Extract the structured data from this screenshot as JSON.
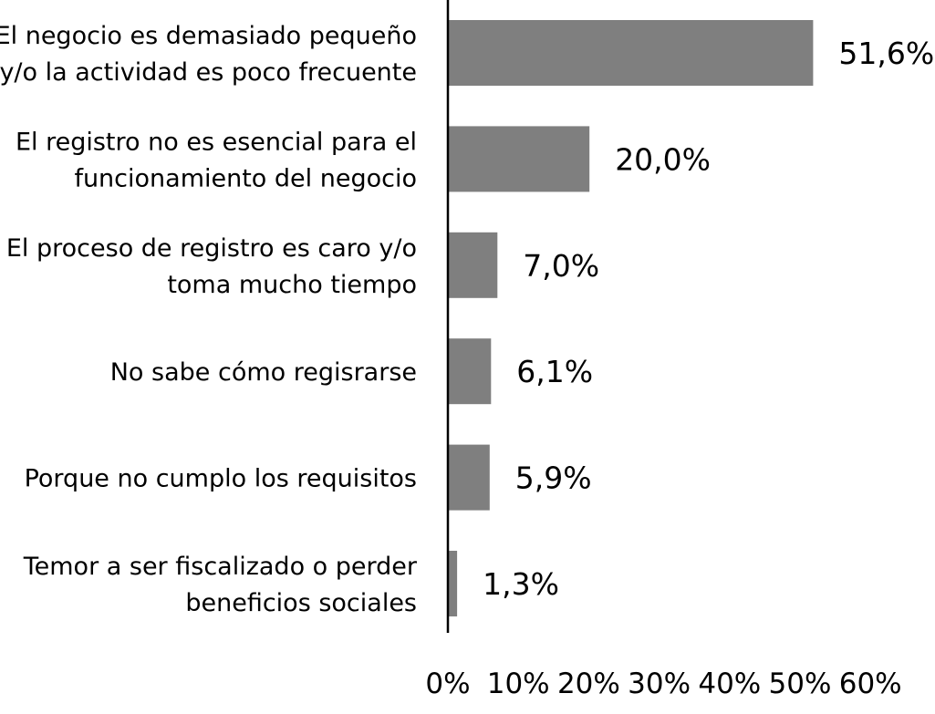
{
  "chart_data": {
    "type": "bar",
    "orientation": "horizontal",
    "categories": [
      [
        "El negocio es demasiado pequeño",
        "y/o la actividad es poco frecuente"
      ],
      [
        "El registro no es esencial para el",
        "funcionamiento del negocio"
      ],
      [
        "El proceso de registro es caro y/o",
        "toma mucho tiempo"
      ],
      [
        "No sabe cómo regisrarse"
      ],
      [
        "Porque no cumplo los requisitos"
      ],
      [
        "Temor a ser fiscalizado o perder",
        "beneficios sociales"
      ]
    ],
    "values": [
      51.6,
      20.0,
      7.0,
      6.1,
      5.9,
      1.3
    ],
    "value_labels": [
      "51,6%",
      "20,0%",
      "7,0%",
      "6,1%",
      "5,9%",
      "1,3%"
    ],
    "xlim": [
      0,
      60
    ],
    "x_ticks": [
      "0%",
      "10%",
      "20%",
      "30%",
      "40%",
      "50%",
      "60%"
    ],
    "title": "",
    "xlabel": "",
    "ylabel": "",
    "grid": false,
    "legend": "none",
    "bar_color": "#7f7f7f"
  }
}
